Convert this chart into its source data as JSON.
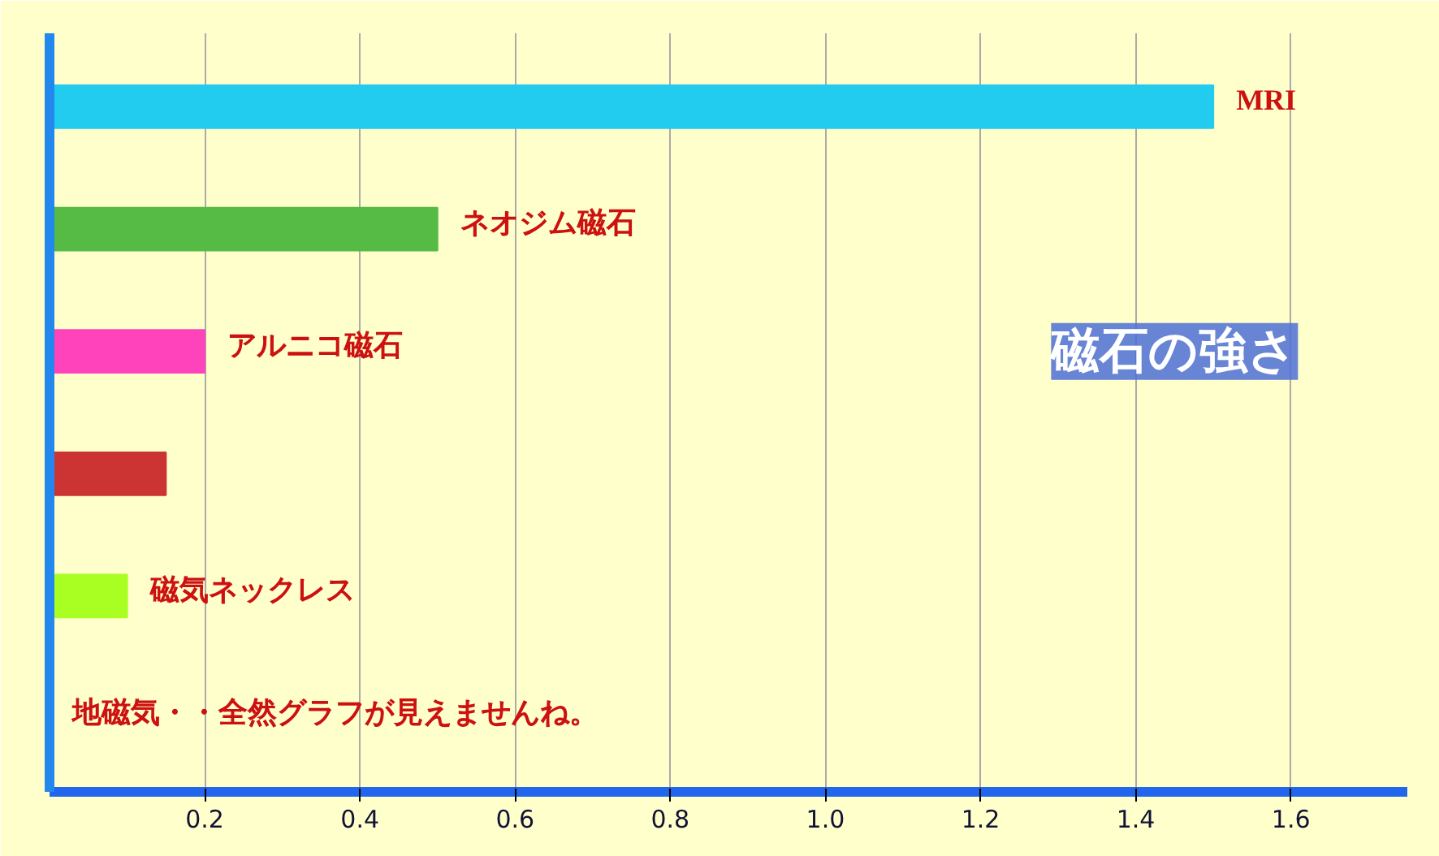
{
  "chart_data": {
    "type": "bar",
    "orientation": "horizontal",
    "title": "磁石の強さ",
    "categories": [
      "MRI",
      "ネオジム磁石",
      "アルニコ磁石",
      null,
      "磁気ネックレス",
      "地磁気・・全然グラフが見えませんね。"
    ],
    "values": [
      1.5,
      0.5,
      0.2,
      0.15,
      0.1,
      0
    ],
    "colors": [
      "#22ccee",
      "#55bb44",
      "#ff44bb",
      "#cc3333",
      "#aaff22",
      "#2266ee"
    ],
    "xlim": [
      0,
      1.75
    ],
    "xticks": [
      0.2,
      0.4,
      0.6,
      0.8,
      {
        "value": 1.0,
        "label": "1.0"
      },
      1.2,
      1.4,
      1.6
    ],
    "tick_labels": "x",
    "grid": "x"
  }
}
